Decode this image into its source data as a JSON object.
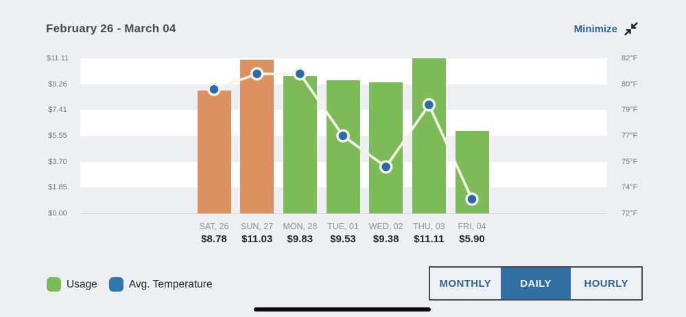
{
  "header": {
    "title": "February 26 - March 04",
    "minimize_label": "Minimize"
  },
  "chart_data": {
    "type": "bar",
    "categories": [
      "SAT, 26",
      "SUN, 27",
      "MON, 28",
      "TUE, 01",
      "WED, 02",
      "THU, 03",
      "FRI, 04"
    ],
    "series": [
      {
        "name": "Usage",
        "type": "bar",
        "unit": "$",
        "values": [
          8.78,
          11.03,
          9.83,
          9.53,
          9.38,
          11.11,
          5.9
        ],
        "value_labels": [
          "$8.78",
          "$11.03",
          "$9.83",
          "$9.53",
          "$9.38",
          "$11.11",
          "$5.90"
        ],
        "bar_colors": [
          "#db9260",
          "#db9260",
          "#7cbb57",
          "#7cbb57",
          "#7cbb57",
          "#7cbb57",
          "#7cbb57"
        ]
      },
      {
        "name": "Avg. Temperature",
        "type": "line",
        "unit": "°F",
        "values": [
          79.8,
          80.8,
          80.8,
          77.0,
          74.8,
          79.2,
          73.1
        ],
        "line_color": "#f3f4e7",
        "point_color": "#2b6aa4"
      }
    ],
    "left_axis": {
      "title": "",
      "ticks": [
        "$11.11",
        "$9.26",
        "$7.41",
        "$5.55",
        "$3.70",
        "$1.85",
        "$0.00"
      ],
      "max": 11.11,
      "min": 0
    },
    "right_axis": {
      "title": "",
      "ticks": [
        "82°F",
        "80°F",
        "79°F",
        "77°F",
        "75°F",
        "74°F",
        "72°F"
      ],
      "tick_values": [
        82,
        80,
        79,
        77,
        75,
        74,
        72
      ]
    },
    "grid": "alternating-horizontal-bands",
    "legend_position": "bottom-left"
  },
  "legend": {
    "items": [
      {
        "label": "Usage",
        "color": "#7cbb57"
      },
      {
        "label": "Avg. Temperature",
        "color": "#3076ad"
      }
    ]
  },
  "controls": {
    "view_buttons": [
      {
        "label": "MONTHLY",
        "active": false
      },
      {
        "label": "DAILY",
        "active": true
      },
      {
        "label": "HOURLY",
        "active": false
      }
    ]
  },
  "colors": {
    "active_button_bg": "#316fa3",
    "active_button_text": "#eef5fb",
    "button_text": "#2a6496",
    "link_blue": "#2a6496",
    "bar_orange": "#db9260",
    "bar_green": "#7cbb57",
    "point_blue": "#2b6aa4",
    "band_white": "#ffffff"
  }
}
